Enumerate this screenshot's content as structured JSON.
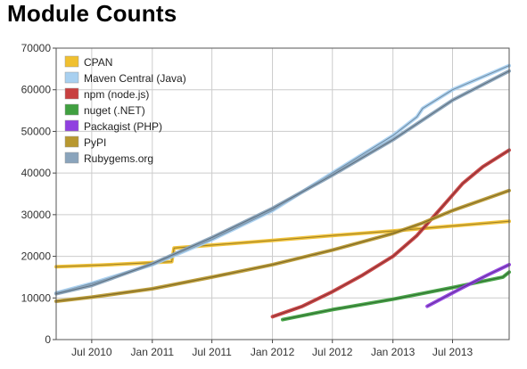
{
  "header": {
    "title": "Module Counts"
  },
  "chart_data": {
    "type": "line",
    "title": "Module Counts",
    "xlabel": "",
    "ylabel": "",
    "ylim": [
      0,
      70000
    ],
    "xlim": [
      "2010-03-15",
      "2013-12-20"
    ],
    "yticks": [
      0,
      10000,
      20000,
      30000,
      40000,
      50000,
      60000,
      70000
    ],
    "yticklabels": [
      "0",
      "10000",
      "20000",
      "30000",
      "40000",
      "50000",
      "60000",
      "70000"
    ],
    "xticks": [
      "2010-07-01",
      "2011-01-01",
      "2011-07-01",
      "2012-01-01",
      "2012-07-01",
      "2013-01-01",
      "2013-07-01"
    ],
    "xticklabels": [
      "Jul 2010",
      "Jan 2011",
      "Jul 2011",
      "Jan 2012",
      "Jul 2012",
      "Jan 2013",
      "Jul 2013"
    ],
    "grid": true,
    "legend_position": "top-left",
    "series": [
      {
        "name": "CPAN",
        "color": "#f0c030",
        "points": [
          [
            "2010-03-15",
            17500
          ],
          [
            "2010-08-01",
            17900
          ],
          [
            "2011-01-01",
            18500
          ],
          [
            "2011-03-01",
            18700
          ],
          [
            "2011-03-08",
            22000
          ],
          [
            "2011-07-01",
            22700
          ],
          [
            "2012-01-01",
            23800
          ],
          [
            "2012-07-01",
            25000
          ],
          [
            "2013-01-01",
            26100
          ],
          [
            "2013-07-01",
            27300
          ],
          [
            "2013-12-20",
            28400
          ]
        ]
      },
      {
        "name": "Maven Central (Java)",
        "color": "#a8d0f0",
        "points": [
          [
            "2010-03-15",
            11200
          ],
          [
            "2010-07-01",
            13500
          ],
          [
            "2011-01-01",
            18000
          ],
          [
            "2011-07-01",
            24000
          ],
          [
            "2012-01-01",
            31000
          ],
          [
            "2012-07-01",
            40000
          ],
          [
            "2013-01-01",
            49000
          ],
          [
            "2013-03-15",
            53500
          ],
          [
            "2013-04-01",
            55500
          ],
          [
            "2013-07-01",
            60000
          ],
          [
            "2013-12-20",
            65800
          ]
        ]
      },
      {
        "name": "npm (node.js)",
        "color": "#c84040",
        "points": [
          [
            "2012-01-01",
            5500
          ],
          [
            "2012-04-01",
            8000
          ],
          [
            "2012-07-01",
            11500
          ],
          [
            "2012-10-01",
            15500
          ],
          [
            "2013-01-01",
            20000
          ],
          [
            "2013-03-15",
            25000
          ],
          [
            "2013-06-01",
            32000
          ],
          [
            "2013-08-01",
            37500
          ],
          [
            "2013-10-01",
            41500
          ],
          [
            "2013-12-20",
            45500
          ]
        ]
      },
      {
        "name": "nuget (.NET)",
        "color": "#40a040",
        "points": [
          [
            "2012-02-01",
            4800
          ],
          [
            "2012-07-01",
            7200
          ],
          [
            "2013-01-01",
            9700
          ],
          [
            "2013-07-01",
            12500
          ],
          [
            "2013-12-01",
            15000
          ],
          [
            "2013-12-20",
            16200
          ]
        ]
      },
      {
        "name": "Packagist (PHP)",
        "color": "#9040e0",
        "points": [
          [
            "2013-04-15",
            8000
          ],
          [
            "2013-08-01",
            12500
          ],
          [
            "2013-10-15",
            15500
          ],
          [
            "2013-12-20",
            18000
          ]
        ]
      },
      {
        "name": "PyPI",
        "color": "#b89830",
        "points": [
          [
            "2010-03-15",
            9200
          ],
          [
            "2010-07-01",
            10200
          ],
          [
            "2011-01-01",
            12200
          ],
          [
            "2011-07-01",
            15000
          ],
          [
            "2012-01-01",
            18000
          ],
          [
            "2012-07-01",
            21500
          ],
          [
            "2013-01-01",
            25500
          ],
          [
            "2013-04-01",
            28000
          ],
          [
            "2013-07-01",
            31000
          ],
          [
            "2013-12-20",
            35800
          ]
        ]
      },
      {
        "name": "Rubygems.org",
        "color": "#8aa4bc",
        "points": [
          [
            "2010-03-15",
            11000
          ],
          [
            "2010-07-01",
            13000
          ],
          [
            "2011-01-01",
            18200
          ],
          [
            "2011-07-01",
            24500
          ],
          [
            "2012-01-01",
            31500
          ],
          [
            "2012-07-01",
            39500
          ],
          [
            "2013-01-01",
            48000
          ],
          [
            "2013-07-01",
            57500
          ],
          [
            "2013-12-20",
            64500
          ]
        ]
      }
    ]
  }
}
